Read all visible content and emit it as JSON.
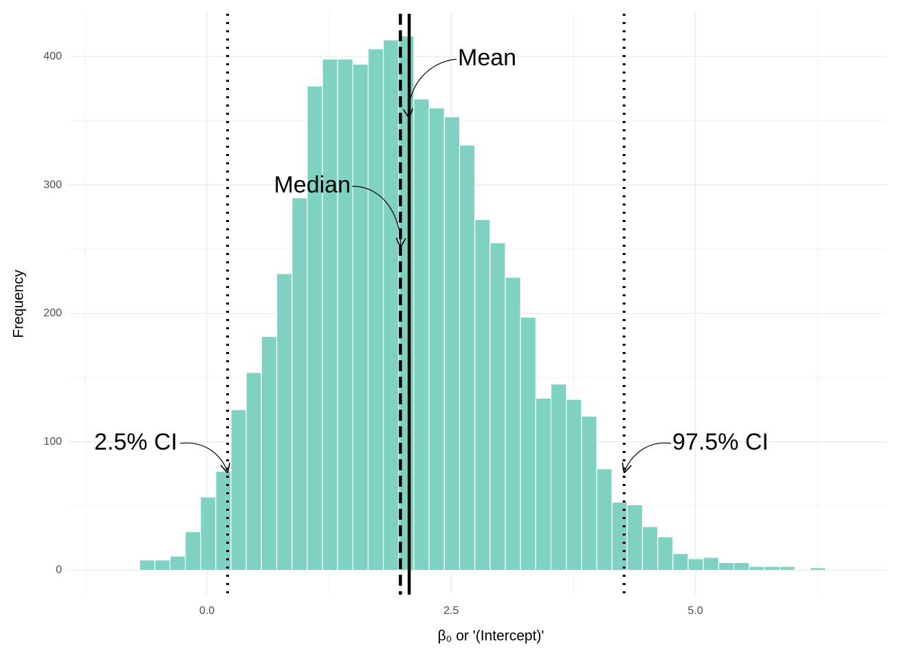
{
  "chart_data": {
    "type": "histogram",
    "x_label": "β₀ or '(Intercept)'",
    "y_label": "Frequency",
    "color": "#7fd1c1",
    "bins": [
      -0.69,
      -0.534,
      -0.378,
      -0.222,
      -0.066,
      0.09,
      0.246,
      0.402,
      0.558,
      0.714,
      0.87,
      1.026,
      1.182,
      1.338,
      1.494,
      1.65,
      1.806,
      1.962,
      2.118,
      2.274,
      2.43,
      2.586,
      2.742,
      2.898,
      3.054,
      3.21,
      3.366,
      3.522,
      3.678,
      3.834,
      3.99,
      4.146,
      4.302,
      4.458,
      4.614,
      4.77,
      4.926,
      5.082,
      5.238,
      5.394,
      5.55,
      5.706,
      5.862,
      6.018,
      6.174,
      6.33
    ],
    "values": [
      8,
      8,
      11,
      30,
      57,
      77,
      125,
      154,
      182,
      231,
      290,
      377,
      398,
      398,
      394,
      406,
      413,
      416,
      367,
      360,
      353,
      331,
      273,
      255,
      228,
      197,
      134,
      145,
      133,
      120,
      79,
      53,
      51,
      34,
      26,
      13,
      9,
      10,
      6,
      6,
      3,
      3,
      3,
      0,
      2
    ],
    "xlim": [
      -1.415,
      6.96
    ],
    "ylim": [
      -19,
      436
    ],
    "xticks": [
      {
        "value": 0,
        "label": "0.0"
      },
      {
        "value": 2.5,
        "label": "2.5"
      },
      {
        "value": 5,
        "label": "5.0"
      }
    ],
    "yticks": [
      0,
      100,
      200,
      300,
      400
    ],
    "grid": true,
    "vlines": [
      {
        "label": "2.5% CI",
        "x": 0.211,
        "style": "dotted"
      },
      {
        "label": "Median",
        "x": 1.98,
        "style": "dashed"
      },
      {
        "label": "Mean",
        "x": 2.07,
        "style": "solid"
      },
      {
        "label": "97.5% CI",
        "x": 4.27,
        "style": "dotted"
      }
    ]
  }
}
